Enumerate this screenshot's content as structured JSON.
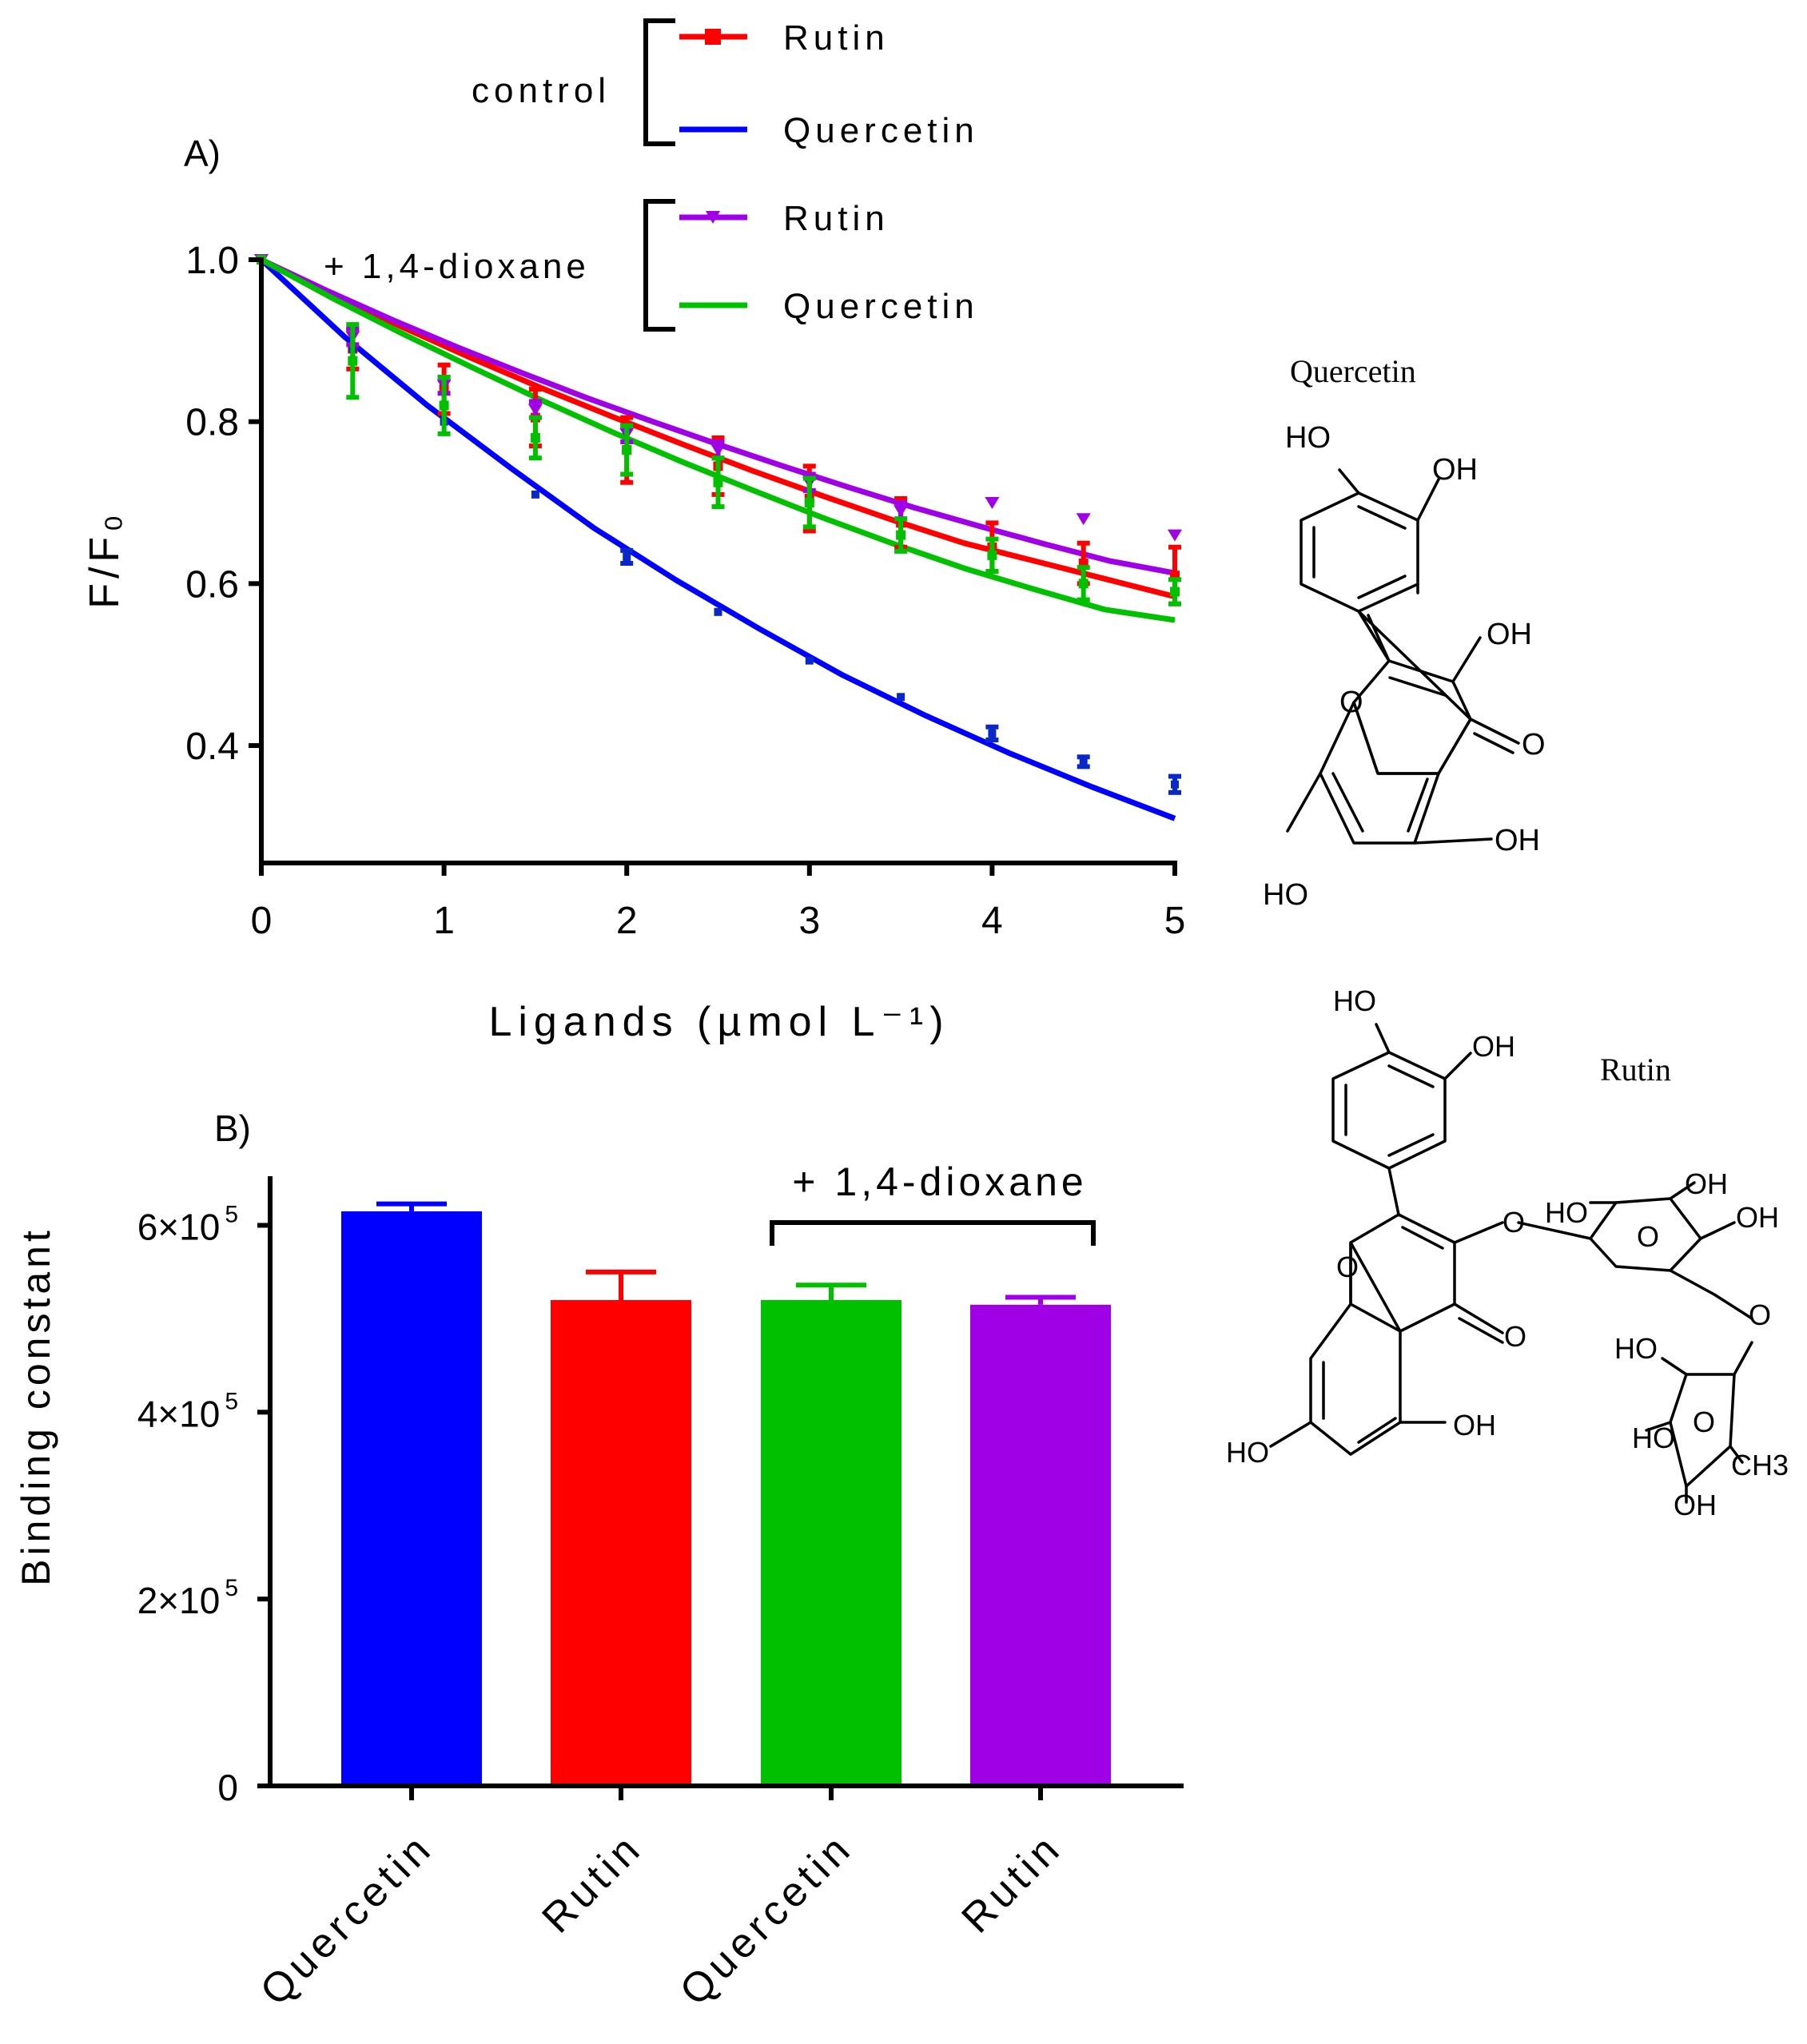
{
  "colors": {
    "blue": "#0000ff",
    "red": "#ff0000",
    "green": "#00c000",
    "purple": "#a000e6",
    "blue_point": "#0a28c8",
    "black": "#000000"
  },
  "legend": {
    "control_label": "control",
    "dioxane_label": "+ 1,4-dioxane",
    "entries": [
      {
        "label": "Rutin",
        "color_key": "red",
        "marker": "square"
      },
      {
        "label": "Quercetin",
        "color_key": "blue",
        "marker": "none"
      },
      {
        "label": "Rutin",
        "color_key": "purple",
        "marker": "triangle-down"
      },
      {
        "label": "Quercetin",
        "color_key": "green",
        "marker": "none"
      }
    ]
  },
  "structures": {
    "quercetin": {
      "name": "Quercetin",
      "labels": [
        "HO",
        "OH",
        "OH",
        "O",
        "O",
        "OH",
        "HO"
      ]
    },
    "rutin": {
      "name": "Rutin",
      "labels": [
        "HO",
        "OH",
        "O",
        "O",
        "O",
        "OH",
        "HO",
        "HO",
        "OH",
        "OH",
        "O",
        "O",
        "HO",
        "O",
        "HO",
        "OH",
        "CH3"
      ]
    }
  },
  "chart_data": [
    {
      "type": "line",
      "panel_label": "A)",
      "xlabel": "Ligands (µmol L⁻¹)",
      "ylabel": "F/F₀",
      "xlim": [
        0,
        5
      ],
      "ylim": [
        0.255,
        1.0
      ],
      "x_ticks": [
        "0",
        "1",
        "2",
        "3",
        "4",
        "5"
      ],
      "y_ticks": [
        "1.0",
        "0.8",
        "0.6",
        "0.4"
      ],
      "x": [
        0,
        0.5,
        1,
        1.5,
        2,
        2.5,
        3,
        3.5,
        4,
        4.5,
        5
      ],
      "series": [
        {
          "name": "Rutin",
          "group": "control",
          "color_key": "red",
          "marker": "square",
          "points": [
            1.0,
            0.89,
            0.84,
            0.805,
            0.765,
            0.745,
            0.705,
            0.675,
            0.645,
            0.625,
            0.61
          ],
          "errors": [
            0.0,
            0.025,
            0.03,
            0.035,
            0.04,
            0.035,
            0.04,
            0.03,
            0.03,
            0.025,
            0.035
          ],
          "fit": [
            1.0,
            0.957,
            0.917,
            0.878,
            0.841,
            0.806,
            0.772,
            0.739,
            0.708,
            0.678,
            0.65,
            0.628,
            0.606,
            0.584
          ]
        },
        {
          "name": "Quercetin",
          "group": "control",
          "color_key": "blue",
          "marker": "square",
          "points": [
            1.0,
            0.89,
            0.8,
            0.71,
            0.633,
            0.565,
            0.505,
            0.46,
            0.415,
            0.38,
            0.352
          ],
          "errors": [
            0.0,
            0.0,
            0.0,
            0.0,
            0.008,
            0.0,
            0.0,
            0.0,
            0.008,
            0.006,
            0.01
          ],
          "fit": [
            1.0,
            0.905,
            0.82,
            0.743,
            0.669,
            0.604,
            0.544,
            0.487,
            0.437,
            0.391,
            0.349,
            0.31
          ]
        },
        {
          "name": "Rutin",
          "group": "+ 1,4-dioxane",
          "color_key": "purple",
          "marker": "triangle-down",
          "points": [
            1.0,
            0.905,
            0.845,
            0.815,
            0.785,
            0.765,
            0.725,
            0.69,
            0.7,
            0.68,
            0.66
          ],
          "errors": [
            0.0,
            0.01,
            0.01,
            0.01,
            0.01,
            0.01,
            0.01,
            0.01,
            0.0,
            0.0,
            0.0
          ],
          "fit": [
            1.0,
            0.962,
            0.926,
            0.892,
            0.86,
            0.829,
            0.8,
            0.772,
            0.745,
            0.719,
            0.694,
            0.671,
            0.649,
            0.628,
            0.613
          ]
        },
        {
          "name": "Quercetin",
          "group": "+ 1,4-dioxane",
          "color_key": "green",
          "marker": "square",
          "points": [
            1.0,
            0.875,
            0.82,
            0.78,
            0.765,
            0.725,
            0.7,
            0.66,
            0.635,
            0.6,
            0.59
          ],
          "errors": [
            0.0,
            0.045,
            0.035,
            0.025,
            0.03,
            0.03,
            0.03,
            0.02,
            0.02,
            0.02,
            0.015
          ],
          "fit": [
            1.0,
            0.953,
            0.909,
            0.867,
            0.826,
            0.787,
            0.75,
            0.715,
            0.681,
            0.649,
            0.619,
            0.593,
            0.568,
            0.555
          ]
        }
      ]
    },
    {
      "type": "bar",
      "panel_label": "B)",
      "ylabel": "Binding constant",
      "ylim": [
        0,
        650000
      ],
      "y_ticks": [
        {
          "value": 0,
          "base": "0",
          "exp": ""
        },
        {
          "value": 200000,
          "base": "2×10",
          "exp": "5"
        },
        {
          "value": 400000,
          "base": "4×10",
          "exp": "5"
        },
        {
          "value": 600000,
          "base": "6×10",
          "exp": "5"
        }
      ],
      "categories": [
        "Quercetin",
        "Rutin",
        "Quercetin",
        "Rutin"
      ],
      "values": [
        615000,
        520000,
        520000,
        515000
      ],
      "errors": [
        8000,
        30000,
        16000,
        8000
      ],
      "bar_colors": [
        "blue",
        "red",
        "green",
        "purple"
      ],
      "bracket_label": "+ 1,4-dioxane",
      "bracket_categories": [
        2,
        3
      ]
    }
  ]
}
